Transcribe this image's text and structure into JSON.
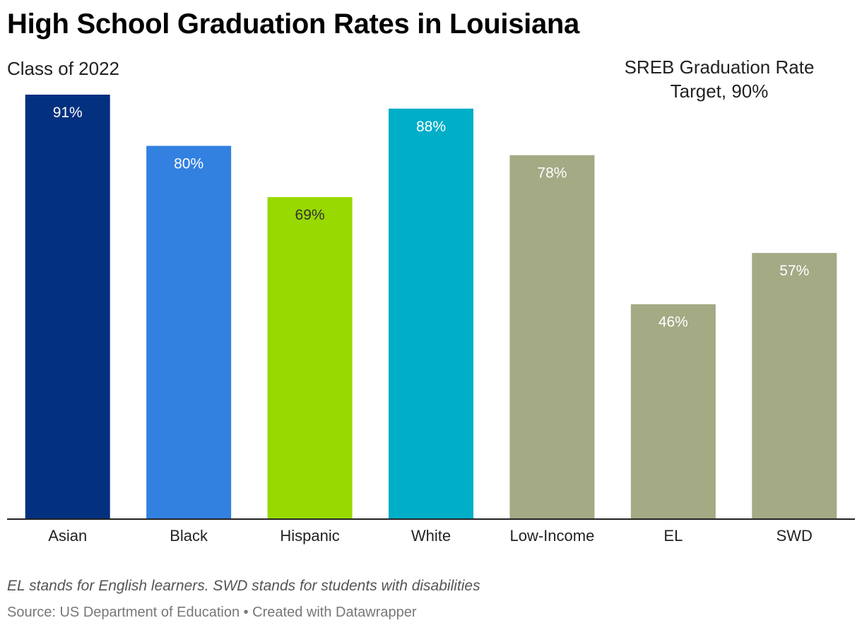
{
  "chart_data": {
    "type": "bar",
    "title": "High School Graduation Rates in Louisiana",
    "subtitle": "Class of 2022",
    "annotation": "SREB Graduation Rate Target, 90%",
    "categories": [
      "Asian",
      "Black",
      "Hispanic",
      "White",
      "Low-Income",
      "EL",
      "SWD"
    ],
    "values": [
      91,
      80,
      69,
      88,
      78,
      46,
      57
    ],
    "value_labels": [
      "91%",
      "80%",
      "69%",
      "88%",
      "78%",
      "46%",
      "57%"
    ],
    "colors": [
      "#03307f",
      "#3280e0",
      "#98d900",
      "#00aec8",
      "#a3aa84",
      "#a3aa84",
      "#a3aa84"
    ],
    "label_colors": [
      "#ffffff",
      "#ffffff",
      "#333333",
      "#ffffff",
      "#ffffff",
      "#ffffff",
      "#ffffff"
    ],
    "ylim": [
      0,
      91
    ],
    "xlabel": "",
    "ylabel": "",
    "grid": false
  },
  "footer": {
    "note": "EL stands for English learners. SWD stands for students with disabilities",
    "source": "Source: US Department of Education • Created with Datawrapper"
  }
}
